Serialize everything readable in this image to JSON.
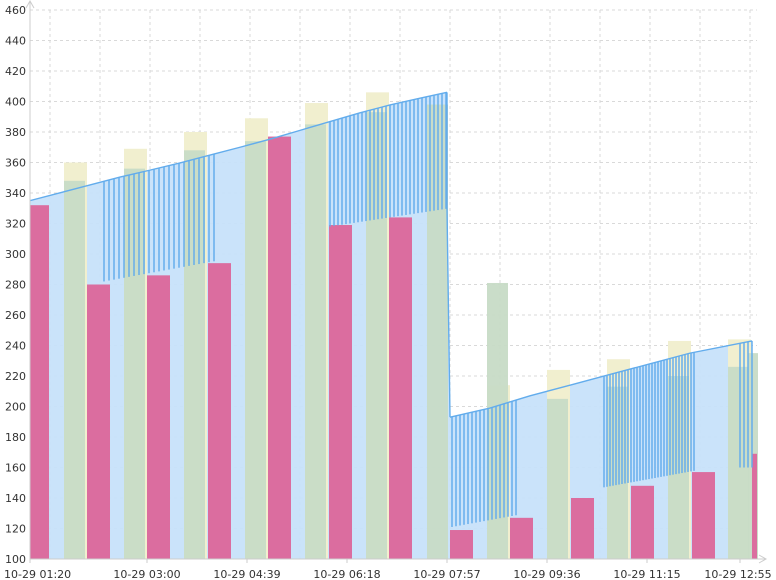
{
  "chart_data": {
    "type": "bar",
    "title": "",
    "xlabel": "",
    "ylabel": "",
    "ylim": [
      100,
      460
    ],
    "yticks": [
      100,
      120,
      140,
      160,
      180,
      200,
      220,
      240,
      260,
      280,
      300,
      320,
      340,
      360,
      380,
      400,
      420,
      440,
      460
    ],
    "x_tick_labels": [
      "10-29 01:20",
      "10-29 03:00",
      "10-29 04:39",
      "10-29 06:18",
      "10-29 07:57",
      "10-29 09:36",
      "10-29 11:15",
      "10-29 12:55"
    ],
    "grid": true,
    "legend": "none",
    "colors": {
      "pink_bar": "#db6d9f",
      "sage_bar": "#c7dbc6",
      "yellow_bar": "#f1efcf",
      "area_fill": "#c7e2fa",
      "line": "#62acec"
    },
    "series": [
      {
        "values": [
          332,
          280,
          286,
          294,
          377,
          319,
          324,
          119,
          127,
          140,
          148,
          157,
          169
        ]
      },
      {
        "values": [
          348,
          356,
          368,
          374,
          385,
          393,
          398,
          281,
          205,
          213,
          220,
          226,
          235
        ]
      },
      {
        "values": [
          360,
          369,
          380,
          389,
          399,
          406,
          214,
          224,
          231,
          243,
          244
        ]
      },
      {
        "values": [
          335,
          343,
          351,
          358,
          366,
          374,
          383,
          392,
          400,
          406,
          193,
          199,
          207,
          214,
          221,
          228,
          235,
          243
        ]
      }
    ]
  }
}
